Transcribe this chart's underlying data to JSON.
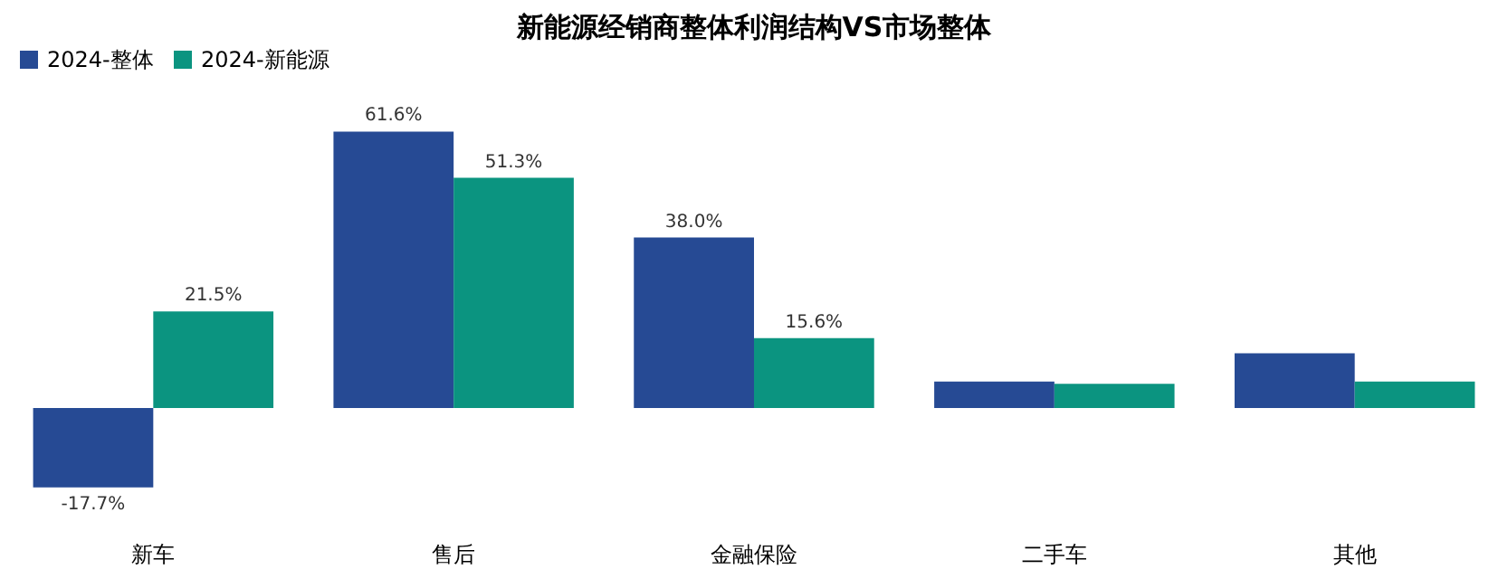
{
  "chart_data": {
    "type": "bar",
    "title": "新能源经销商整体利润结构VS市场整体",
    "categories": [
      "新车",
      "售后",
      "金融保险",
      "二手车",
      "其他"
    ],
    "series": [
      {
        "name": "2024-整体",
        "color": "#264a94",
        "values": [
          -17.7,
          61.6,
          38.0,
          5.9,
          12.2
        ],
        "value_labels": [
          "-17.7%",
          "61.6%",
          "38.0%",
          null,
          null
        ]
      },
      {
        "name": "2024-新能源",
        "color": "#0b9480",
        "values": [
          21.5,
          51.3,
          15.6,
          5.4,
          5.9
        ],
        "value_labels": [
          "21.5%",
          "51.3%",
          "15.6%",
          null,
          null
        ]
      }
    ],
    "legend": "top",
    "grid": false,
    "tick_labels": "x"
  }
}
